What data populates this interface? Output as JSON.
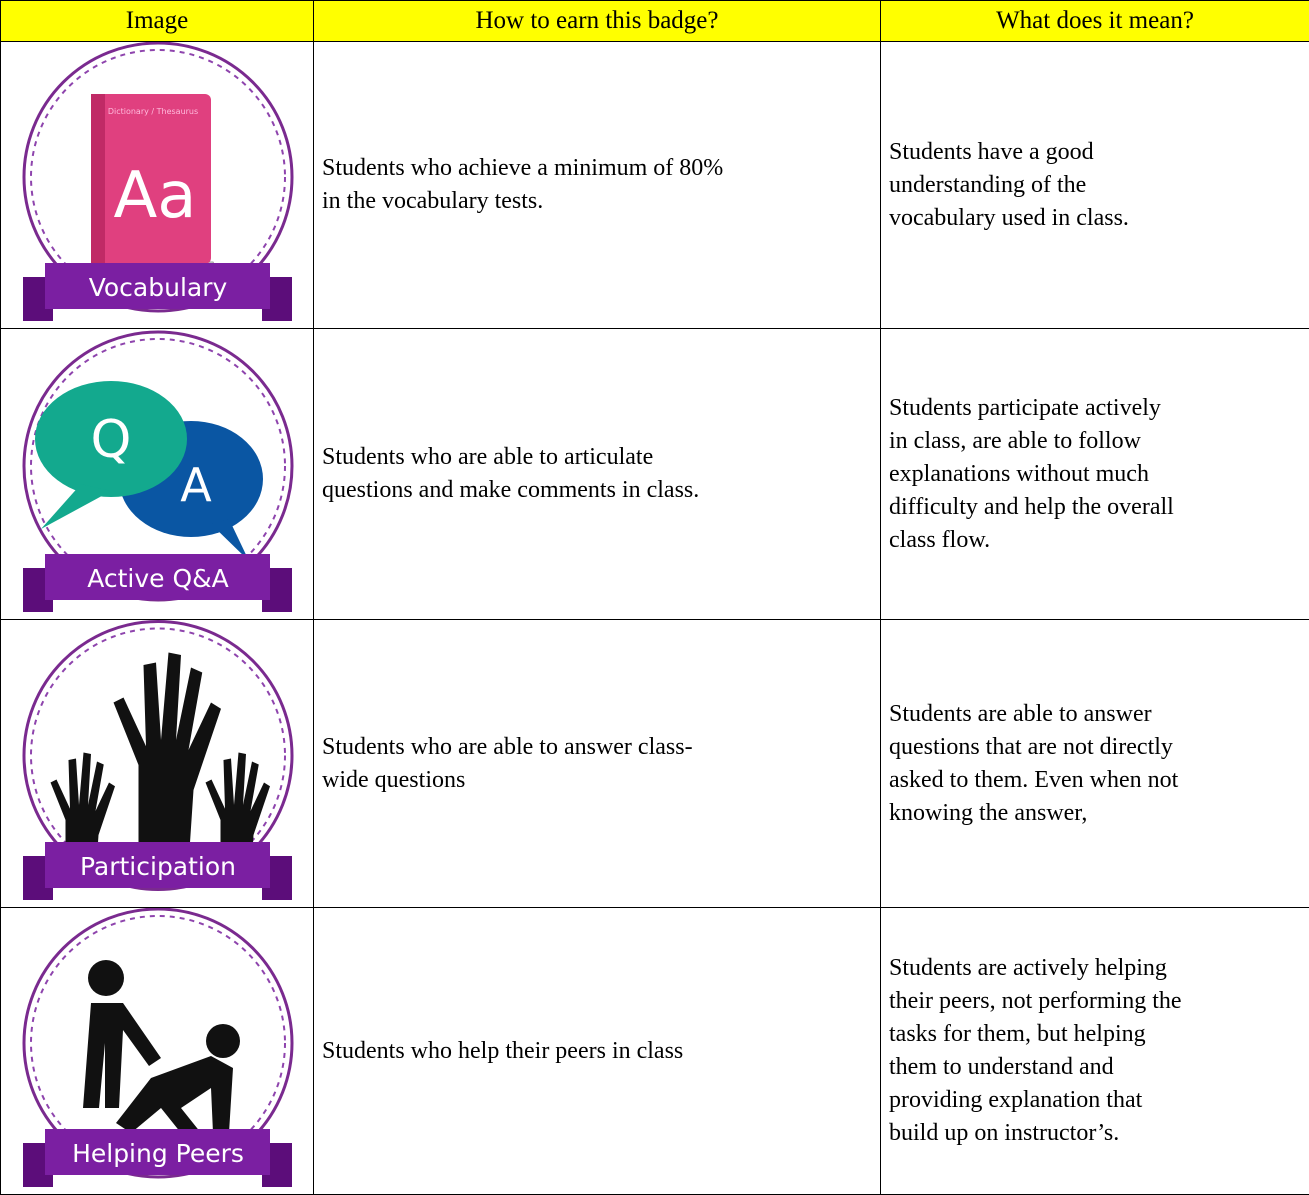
{
  "table": {
    "headers": [
      "Image",
      "How to earn this badge?",
      "What does it mean?"
    ],
    "rows": [
      {
        "badge": {
          "label": "Vocabulary",
          "icon_text": [
            "Dictionary / Thesaurus",
            "Aa"
          ]
        },
        "how": [
          "Students who achieve a minimum of 80%",
          "in the vocabulary tests."
        ],
        "meaning": [
          "Students have a good",
          "understanding of the",
          "vocabulary used in class."
        ]
      },
      {
        "badge": {
          "label": "Active Q&A",
          "icon_text": [
            "Q",
            "A"
          ]
        },
        "how": [
          "Students who are able to articulate",
          "questions and make comments in class."
        ],
        "meaning": [
          "Students participate actively",
          "in class, are able to follow",
          "explanations without much",
          "difficulty and help the overall",
          "class flow."
        ]
      },
      {
        "badge": {
          "label": "Participation"
        },
        "how": [
          "Students who are able to answer class-",
          "wide questions"
        ],
        "meaning": [
          "Students are able to answer",
          "questions that are not directly",
          "asked to them. Even when not",
          "knowing the answer,"
        ]
      },
      {
        "badge": {
          "label": "Helping Peers"
        },
        "how": [
          "Students who help their peers in class"
        ],
        "meaning": [
          "Students are actively helping",
          "their peers, not performing the",
          "tasks for them, but helping",
          "them to understand and",
          "providing explanation that",
          "build up on instructor’s."
        ]
      }
    ]
  }
}
